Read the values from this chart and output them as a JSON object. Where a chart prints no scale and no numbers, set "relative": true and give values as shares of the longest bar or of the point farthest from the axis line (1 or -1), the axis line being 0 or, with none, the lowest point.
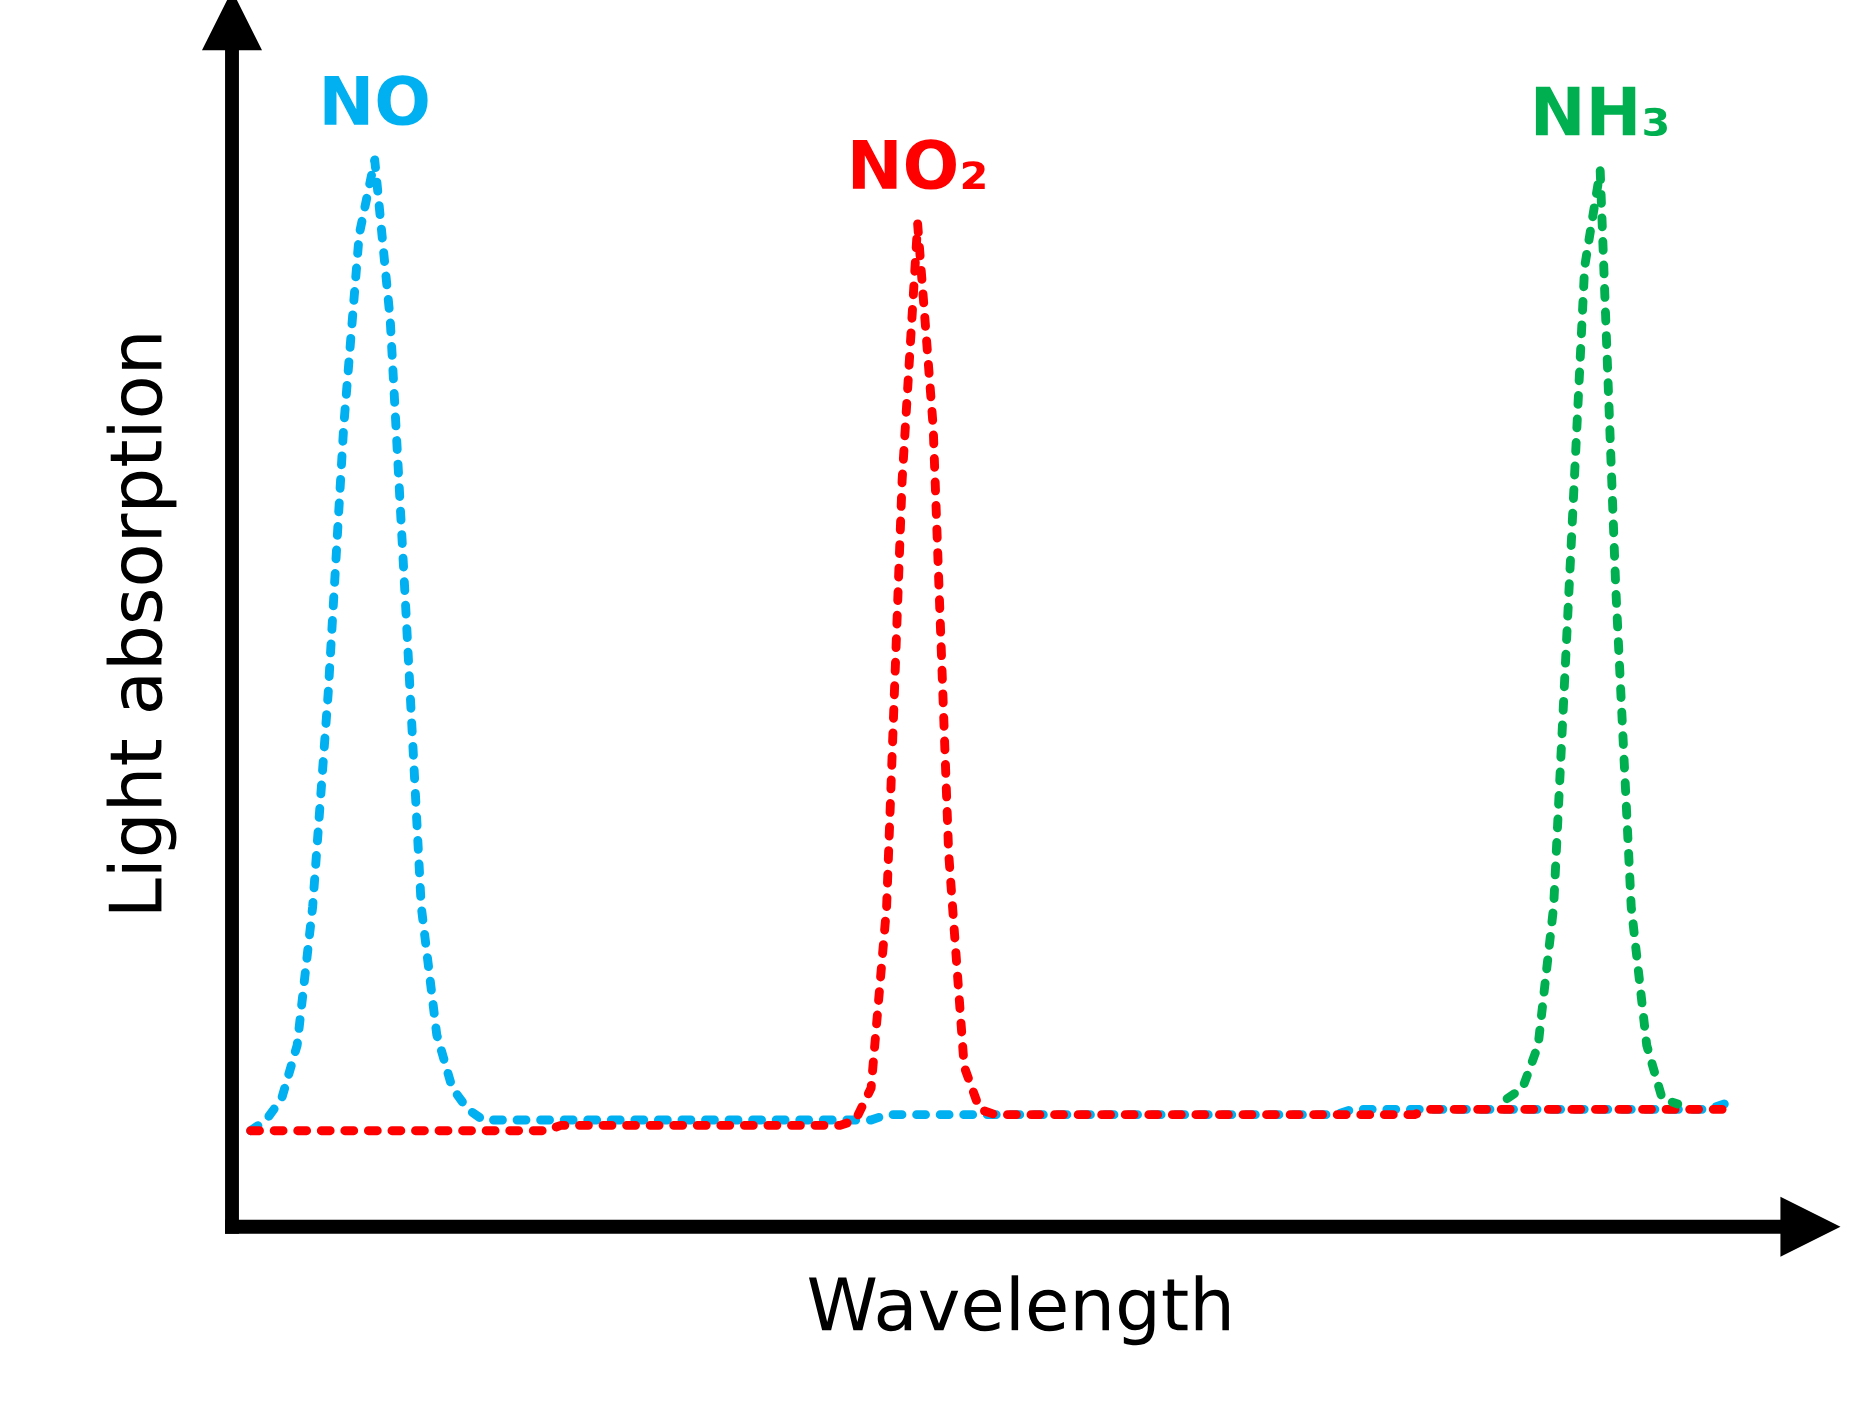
{
  "chart_data": {
    "type": "line",
    "xlabel": "Wavelength",
    "ylabel": "Light absorption",
    "relative": true,
    "grid": false,
    "legend": false,
    "marker": "none",
    "line_style": "dotted",
    "categories": [
      null,
      null,
      null,
      null,
      null,
      null,
      null,
      null,
      null,
      null,
      null,
      null,
      null,
      null,
      null,
      null,
      null,
      null,
      null,
      null,
      null,
      null,
      null,
      null,
      null,
      null,
      null,
      null,
      null,
      null,
      null,
      null,
      null,
      null,
      null,
      null,
      null,
      null,
      null,
      null,
      null,
      null,
      null,
      null,
      null,
      null,
      null,
      null,
      null,
      null,
      null,
      null,
      null,
      null,
      null,
      null,
      null,
      null,
      null,
      null,
      null,
      null,
      null,
      null,
      null,
      null,
      null,
      null,
      null,
      null,
      null,
      null,
      null,
      null,
      null,
      null,
      null,
      null,
      null,
      null,
      null,
      null,
      null,
      null,
      null,
      null,
      null,
      null,
      null,
      null,
      null,
      null,
      null,
      null,
      null,
      null
    ],
    "series": [
      {
        "name": "NO",
        "color": "#00b0f0",
        "values": [
          0.09,
          0.1,
          0.12,
          0.17,
          0.3,
          0.5,
          0.75,
          0.93,
          1.0,
          0.85,
          0.58,
          0.3,
          0.18,
          0.13,
          0.11,
          0.1,
          0.1,
          0.1,
          0.1,
          0.1,
          0.1,
          0.1,
          0.1,
          0.1,
          0.1,
          0.1,
          0.1,
          0.1,
          0.1,
          0.1,
          0.1,
          0.1,
          0.1,
          0.1,
          0.1,
          0.1,
          0.1,
          0.1,
          0.1,
          0.1,
          0.1,
          0.105,
          0.105,
          0.105,
          0.105,
          0.105,
          0.105,
          0.105,
          0.105,
          0.105,
          0.105,
          0.105,
          0.105,
          0.105,
          0.105,
          0.105,
          0.105,
          0.105,
          0.105,
          0.105,
          0.105,
          0.105,
          0.105,
          0.105,
          0.105,
          0.105,
          0.105,
          0.105,
          0.105,
          0.105,
          0.105,
          0.11,
          0.11,
          0.11,
          0.11,
          0.11,
          0.11,
          0.11,
          0.11,
          0.11,
          0.11,
          0.11,
          0.11,
          0.11,
          0.11,
          0.11,
          0.11,
          0.11,
          0.11,
          0.11,
          0.11,
          0.11,
          0.11,
          0.11,
          0.11,
          0.115
        ]
      },
      {
        "name": "NO₂",
        "color": "#ff0000",
        "values": [
          0.09,
          0.09,
          0.09,
          0.09,
          0.09,
          0.09,
          0.09,
          0.09,
          0.09,
          0.09,
          0.09,
          0.09,
          0.09,
          0.09,
          0.09,
          0.09,
          0.09,
          0.09,
          0.09,
          0.09,
          0.095,
          0.095,
          0.095,
          0.095,
          0.095,
          0.095,
          0.095,
          0.095,
          0.095,
          0.095,
          0.095,
          0.095,
          0.095,
          0.095,
          0.095,
          0.095,
          0.095,
          0.095,
          0.095,
          0.1,
          0.13,
          0.3,
          0.7,
          0.94,
          0.75,
          0.35,
          0.15,
          0.11,
          0.105,
          0.105,
          0.105,
          0.105,
          0.105,
          0.105,
          0.105,
          0.105,
          0.105,
          0.105,
          0.105,
          0.105,
          0.105,
          0.105,
          0.105,
          0.105,
          0.105,
          0.105,
          0.105,
          0.105,
          0.105,
          0.105,
          0.105,
          0.105,
          0.105,
          0.105,
          0.105,
          0.105,
          0.11,
          0.11,
          0.11,
          0.11,
          0.11,
          0.11,
          0.11,
          0.11,
          0.11,
          0.11,
          0.11,
          0.11,
          0.11,
          0.11,
          0.11,
          0.11,
          0.11,
          0.11,
          0.11,
          0.11
        ]
      },
      {
        "name": "NH₃",
        "color": "#00b050",
        "values": [
          null,
          null,
          null,
          null,
          null,
          null,
          null,
          null,
          null,
          null,
          null,
          null,
          null,
          null,
          null,
          null,
          null,
          null,
          null,
          null,
          null,
          null,
          null,
          null,
          null,
          null,
          null,
          null,
          null,
          null,
          null,
          null,
          null,
          null,
          null,
          null,
          null,
          null,
          null,
          null,
          null,
          null,
          null,
          null,
          null,
          null,
          null,
          null,
          null,
          null,
          null,
          null,
          null,
          null,
          null,
          null,
          null,
          null,
          null,
          null,
          null,
          null,
          null,
          null,
          null,
          null,
          null,
          null,
          null,
          null,
          null,
          null,
          null,
          null,
          null,
          null,
          null,
          null,
          null,
          null,
          null,
          0.12,
          0.13,
          0.17,
          0.3,
          0.6,
          0.9,
          0.99,
          0.6,
          0.3,
          0.17,
          0.12,
          0.115,
          null,
          null,
          null
        ]
      }
    ]
  }
}
